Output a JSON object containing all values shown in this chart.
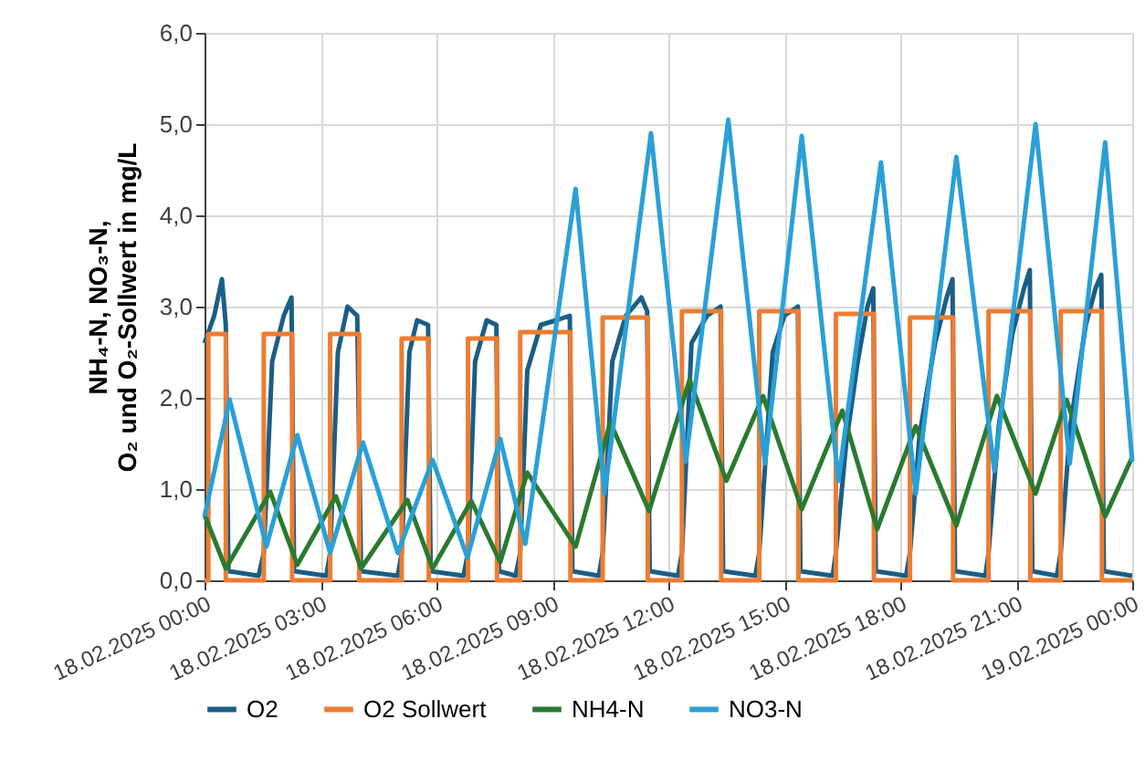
{
  "chart_data": {
    "type": "line",
    "ylabel": "NH₄-N, NO₃-N,\nO₂ und O₂-Sollwert in mg/L",
    "xlim": [
      "2025-02-18T00:00",
      "2025-02-19T00:00"
    ],
    "ylim": [
      0,
      6
    ],
    "xticks": [
      {
        "value": "2025-02-18T00:00",
        "label": "18.02.2025 00:00"
      },
      {
        "value": "2025-02-18T03:00",
        "label": "18.02.2025 03:00"
      },
      {
        "value": "2025-02-18T06:00",
        "label": "18.02.2025 06:00"
      },
      {
        "value": "2025-02-18T09:00",
        "label": "18.02.2025 09:00"
      },
      {
        "value": "2025-02-18T12:00",
        "label": "18.02.2025 12:00"
      },
      {
        "value": "2025-02-18T15:00",
        "label": "18.02.2025 15:00"
      },
      {
        "value": "2025-02-18T18:00",
        "label": "18.02.2025 18:00"
      },
      {
        "value": "2025-02-18T21:00",
        "label": "18.02.2025 21:00"
      },
      {
        "value": "2025-02-19T00:00",
        "label": "19.02.2025 00:00"
      }
    ],
    "yticks": [
      {
        "value": 0,
        "label": "0,0"
      },
      {
        "value": 1,
        "label": "1,0"
      },
      {
        "value": 2,
        "label": "2,0"
      },
      {
        "value": 3,
        "label": "3,0"
      },
      {
        "value": 4,
        "label": "4,0"
      },
      {
        "value": 5,
        "label": "5,0"
      },
      {
        "value": 6,
        "label": "6,0"
      }
    ],
    "grid": true,
    "legend": "bottom",
    "series": [
      {
        "name": "O2",
        "color": "#1b5e85",
        "x": [
          "2025-02-18T00:00",
          "2025-02-18T00:15",
          "2025-02-18T00:27",
          "2025-02-18T00:33",
          "2025-02-18T00:37",
          "2025-02-18T01:24",
          "2025-02-18T01:32",
          "2025-02-18T01:45",
          "2025-02-18T02:03",
          "2025-02-18T02:15",
          "2025-02-18T02:19",
          "2025-02-18T03:09",
          "2025-02-18T03:15",
          "2025-02-18T03:27",
          "2025-02-18T03:42",
          "2025-02-18T03:57",
          "2025-02-18T04:03",
          "2025-02-18T05:00",
          "2025-02-18T05:06",
          "2025-02-18T05:18",
          "2025-02-18T05:30",
          "2025-02-18T05:47",
          "2025-02-18T05:51",
          "2025-02-18T06:42",
          "2025-02-18T06:49",
          "2025-02-18T07:00",
          "2025-02-18T07:18",
          "2025-02-18T07:33",
          "2025-02-18T07:37",
          "2025-02-18T08:03",
          "2025-02-18T08:10",
          "2025-02-18T08:21",
          "2025-02-18T08:42",
          "2025-02-18T09:06",
          "2025-02-18T09:27",
          "2025-02-18T09:31",
          "2025-02-18T10:12",
          "2025-02-18T10:18",
          "2025-02-18T10:33",
          "2025-02-18T10:54",
          "2025-02-18T11:18",
          "2025-02-18T11:27",
          "2025-02-18T11:31",
          "2025-02-18T12:15",
          "2025-02-18T12:21",
          "2025-02-18T12:36",
          "2025-02-18T13:00",
          "2025-02-18T13:21",
          "2025-02-18T13:25",
          "2025-02-18T14:15",
          "2025-02-18T14:21",
          "2025-02-18T14:42",
          "2025-02-18T15:00",
          "2025-02-18T15:21",
          "2025-02-18T15:25",
          "2025-02-18T16:15",
          "2025-02-18T16:20",
          "2025-02-18T16:36",
          "2025-02-18T16:54",
          "2025-02-18T17:09",
          "2025-02-18T17:18",
          "2025-02-18T17:22",
          "2025-02-18T18:09",
          "2025-02-18T18:15",
          "2025-02-18T18:30",
          "2025-02-18T18:54",
          "2025-02-18T19:12",
          "2025-02-18T19:21",
          "2025-02-18T19:25",
          "2025-02-18T20:12",
          "2025-02-18T20:17",
          "2025-02-18T20:33",
          "2025-02-18T20:54",
          "2025-02-18T21:12",
          "2025-02-18T21:21",
          "2025-02-18T21:25",
          "2025-02-18T22:03",
          "2025-02-18T22:09",
          "2025-02-18T22:24",
          "2025-02-18T22:48",
          "2025-02-18T23:03",
          "2025-02-18T23:12",
          "2025-02-18T23:16",
          "2025-02-19T00:00"
        ],
        "values": [
          2.6,
          2.9,
          3.3,
          2.8,
          0.1,
          0.05,
          0.3,
          2.4,
          2.9,
          3.1,
          0.1,
          0.05,
          0.3,
          2.5,
          3.0,
          2.9,
          0.1,
          0.05,
          0.3,
          2.5,
          2.85,
          2.8,
          0.1,
          0.05,
          0.3,
          2.4,
          2.85,
          2.8,
          0.1,
          0.05,
          0.3,
          2.3,
          2.8,
          2.85,
          2.9,
          0.1,
          0.05,
          0.3,
          2.4,
          2.9,
          3.1,
          2.95,
          0.1,
          0.05,
          0.3,
          2.6,
          2.9,
          3.0,
          0.1,
          0.05,
          0.3,
          2.5,
          2.9,
          3.0,
          0.1,
          0.05,
          0.3,
          1.5,
          2.4,
          3.0,
          3.2,
          0.1,
          0.05,
          0.3,
          1.6,
          2.6,
          3.1,
          3.3,
          0.1,
          0.05,
          0.3,
          1.7,
          2.7,
          3.2,
          3.4,
          0.1,
          0.05,
          0.3,
          1.7,
          2.8,
          3.2,
          3.35,
          0.1,
          0.05
        ]
      },
      {
        "name": "O2 Sollwert",
        "color": "#ed7d31",
        "type": "step",
        "x": [
          "2025-02-18T00:00",
          "2025-02-18T00:06",
          "2025-02-18T00:33",
          "2025-02-18T01:32",
          "2025-02-18T02:16",
          "2025-02-18T03:15",
          "2025-02-18T04:00",
          "2025-02-18T05:06",
          "2025-02-18T05:48",
          "2025-02-18T06:49",
          "2025-02-18T07:34",
          "2025-02-18T08:10",
          "2025-02-18T09:28",
          "2025-02-18T10:18",
          "2025-02-18T11:28",
          "2025-02-18T12:21",
          "2025-02-18T13:22",
          "2025-02-18T14:21",
          "2025-02-18T15:22",
          "2025-02-18T16:20",
          "2025-02-18T17:19",
          "2025-02-18T18:15",
          "2025-02-18T19:22",
          "2025-02-18T20:17",
          "2025-02-18T21:22",
          "2025-02-18T22:09",
          "2025-02-18T23:13",
          "2025-02-19T00:00"
        ],
        "values": [
          0,
          2.7,
          0,
          2.7,
          0,
          2.7,
          0,
          2.65,
          0,
          2.65,
          0,
          2.72,
          0,
          2.88,
          0,
          2.95,
          0,
          2.95,
          0,
          2.92,
          0,
          2.88,
          0,
          2.95,
          0,
          2.95,
          0,
          0
        ]
      },
      {
        "name": "NH4-N",
        "color": "#2a7a2f",
        "x": [
          "2025-02-18T00:00",
          "2025-02-18T00:33",
          "2025-02-18T01:42",
          "2025-02-18T02:24",
          "2025-02-18T03:24",
          "2025-02-18T04:03",
          "2025-02-18T05:15",
          "2025-02-18T05:54",
          "2025-02-18T06:54",
          "2025-02-18T07:39",
          "2025-02-18T08:21",
          "2025-02-18T09:36",
          "2025-02-18T10:30",
          "2025-02-18T11:30",
          "2025-02-18T12:33",
          "2025-02-18T13:30",
          "2025-02-18T14:27",
          "2025-02-18T15:27",
          "2025-02-18T16:30",
          "2025-02-18T17:24",
          "2025-02-18T18:24",
          "2025-02-18T19:27",
          "2025-02-18T20:30",
          "2025-02-18T21:30",
          "2025-02-18T22:18",
          "2025-02-18T23:18",
          "2025-02-19T00:00"
        ],
        "values": [
          0.72,
          0.13,
          0.97,
          0.17,
          0.92,
          0.13,
          0.88,
          0.13,
          0.87,
          0.2,
          1.18,
          0.37,
          1.73,
          0.76,
          2.2,
          1.09,
          2.02,
          0.78,
          1.86,
          0.56,
          1.69,
          0.6,
          2.02,
          0.95,
          1.98,
          0.7,
          1.35
        ]
      },
      {
        "name": "NO3-N",
        "color": "#2aa0d6",
        "x": [
          "2025-02-18T00:00",
          "2025-02-18T00:39",
          "2025-02-18T01:36",
          "2025-02-18T02:24",
          "2025-02-18T03:15",
          "2025-02-18T04:06",
          "2025-02-18T05:00",
          "2025-02-18T05:54",
          "2025-02-18T06:48",
          "2025-02-18T07:39",
          "2025-02-18T08:18",
          "2025-02-18T09:36",
          "2025-02-18T10:21",
          "2025-02-18T11:33",
          "2025-02-18T12:27",
          "2025-02-18T13:33",
          "2025-02-18T14:30",
          "2025-02-18T15:27",
          "2025-02-18T16:24",
          "2025-02-18T17:30",
          "2025-02-18T18:24",
          "2025-02-18T19:27",
          "2025-02-18T20:26",
          "2025-02-18T21:30",
          "2025-02-18T22:23",
          "2025-02-18T23:18",
          "2025-02-19T00:00"
        ],
        "values": [
          0.7,
          1.98,
          0.37,
          1.59,
          0.3,
          1.51,
          0.3,
          1.32,
          0.25,
          1.55,
          0.4,
          4.29,
          0.95,
          4.9,
          1.3,
          5.05,
          1.28,
          4.87,
          1.09,
          4.58,
          0.95,
          4.64,
          1.2,
          5.0,
          1.28,
          4.8,
          1.3
        ]
      }
    ]
  }
}
